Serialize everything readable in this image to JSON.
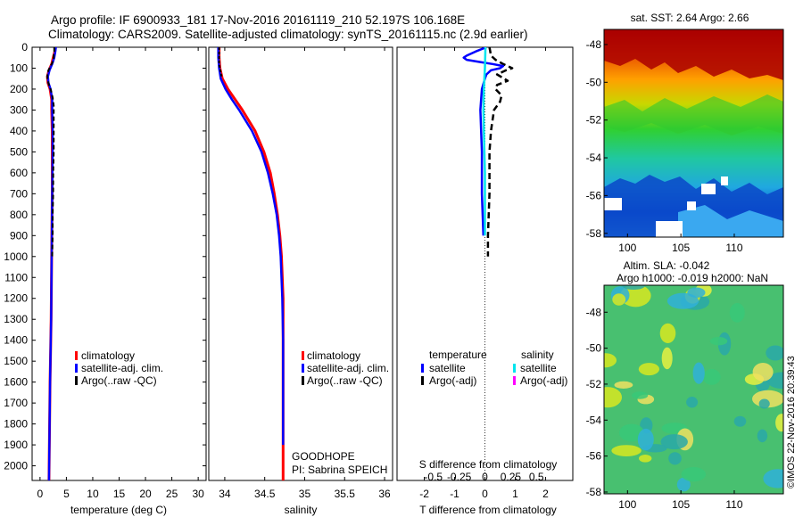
{
  "header": {
    "line1": "Argo profile: IF 6900933_181 17-Nov-2016 20161119_210 52.197S 106.168E",
    "line2": "Climatology: CARS2009. Satellite-adjusted climatology: synTS_20161115.nc (2.9d earlier)"
  },
  "colors": {
    "climatology": "#ff0000",
    "satellite": "#0000ff",
    "argo": "#000000",
    "sat_salinity": "#00e5ee",
    "argo_salinity": "#ff00ff"
  },
  "depth_axis": {
    "min": 0,
    "max": 2070,
    "ticks": [
      0,
      100,
      200,
      300,
      400,
      500,
      600,
      700,
      800,
      900,
      1000,
      1100,
      1200,
      1300,
      1400,
      1500,
      1600,
      1700,
      1800,
      1900,
      2000
    ]
  },
  "chart_data": [
    {
      "type": "line",
      "id": "temperature",
      "xlabel": "temperature (deg C)",
      "xlim": [
        -1.5,
        31.5
      ],
      "xticks": [
        0,
        5,
        10,
        15,
        20,
        25,
        30
      ],
      "legend": [
        "climatology",
        "satellite-adj. clim.",
        "Argo(..raw -QC)"
      ],
      "series": [
        {
          "name": "climatology",
          "depth": [
            0,
            20,
            50,
            80,
            110,
            140,
            170,
            200,
            250,
            300,
            400,
            500,
            700,
            1000,
            1300,
            1600,
            2070
          ],
          "values": [
            2.9,
            2.8,
            2.5,
            2.2,
            1.7,
            1.4,
            1.5,
            1.9,
            2.2,
            2.2,
            2.3,
            2.3,
            2.3,
            2.2,
            2.1,
            1.9,
            1.7
          ]
        },
        {
          "name": "satellite-adj. clim.",
          "depth": [
            0,
            20,
            50,
            80,
            110,
            140,
            170,
            200,
            250,
            300,
            400,
            500,
            700,
            1000,
            1300,
            1600,
            2070
          ],
          "values": [
            3.0,
            2.9,
            2.7,
            2.3,
            1.8,
            1.5,
            1.6,
            2.0,
            2.3,
            2.3,
            2.4,
            2.4,
            2.3,
            2.2,
            2.1,
            1.9,
            1.7
          ]
        },
        {
          "name": "Argo(..raw -QC)",
          "depth": [
            0,
            10,
            20,
            30,
            40,
            50,
            60,
            70,
            80,
            90,
            100,
            110,
            120,
            130,
            140,
            150,
            160,
            170,
            180,
            190,
            200,
            220,
            240,
            260,
            280,
            300,
            350,
            400,
            450,
            500,
            600,
            700,
            800,
            900,
            1000
          ],
          "values": [
            2.7,
            2.7,
            2.7,
            2.6,
            2.6,
            2.6,
            2.5,
            2.4,
            2.2,
            2.0,
            1.8,
            1.6,
            1.5,
            1.4,
            1.4,
            1.4,
            1.5,
            1.6,
            1.7,
            1.8,
            2.0,
            2.2,
            2.4,
            2.5,
            2.6,
            2.6,
            2.6,
            2.6,
            2.6,
            2.6,
            2.5,
            2.5,
            2.4,
            2.4,
            2.3
          ]
        }
      ]
    },
    {
      "type": "line",
      "id": "salinity",
      "xlabel": "salinity",
      "xlim": [
        33.8,
        36.1
      ],
      "xticks": [
        34,
        34.5,
        35,
        35.5,
        36
      ],
      "legend": [
        "climatology",
        "satellite-adj. clim.",
        "Argo(..raw -QC)"
      ],
      "series": [
        {
          "name": "climatology",
          "depth": [
            0,
            50,
            100,
            150,
            200,
            250,
            300,
            400,
            500,
            600,
            700,
            800,
            900,
            1000,
            1100,
            1200,
            1400,
            2070
          ],
          "values": [
            33.93,
            33.93,
            33.94,
            33.97,
            34.04,
            34.13,
            34.22,
            34.38,
            34.49,
            34.57,
            34.62,
            34.66,
            34.69,
            34.71,
            34.72,
            34.73,
            34.73,
            34.73
          ]
        },
        {
          "name": "satellite-adj. clim.",
          "depth": [
            0,
            50,
            100,
            150,
            200,
            250,
            300,
            400,
            500,
            600,
            700,
            800,
            900,
            1000,
            1100,
            1200,
            1400,
            1900
          ],
          "values": [
            33.92,
            33.92,
            33.93,
            33.95,
            34.01,
            34.09,
            34.18,
            34.34,
            34.46,
            34.54,
            34.6,
            34.65,
            34.68,
            34.7,
            34.71,
            34.72,
            34.73,
            34.73
          ]
        },
        {
          "name": "Argo(..raw -QC)",
          "depth": [
            0,
            10,
            20,
            40,
            60,
            80,
            100,
            120,
            140
          ],
          "values": [
            33.93,
            33.93,
            33.93,
            33.93,
            33.93,
            33.93,
            33.94,
            33.95,
            33.96
          ]
        }
      ],
      "note": {
        "line1": "GOODHOPE",
        "line2": "PI: Sabrina SPEICH"
      }
    },
    {
      "type": "line",
      "id": "difference",
      "xlabel": "T difference from climatology",
      "xlim": [
        -2.9,
        2.9
      ],
      "xticks": [
        -2,
        -1,
        0,
        1,
        2
      ],
      "s_axis_label": "S difference from climatology",
      "s_ticks": [
        "-0.5",
        "-0.25",
        "0",
        "0.25",
        "0.5"
      ],
      "s_tick_values": [
        -0.5,
        -0.25,
        0,
        0.25,
        0.5
      ],
      "legend_titles": [
        "temperature",
        "salinity"
      ],
      "legend": [
        "satellite",
        "Argo(-adj)",
        "satellite",
        "Argo(-adj)"
      ],
      "series": [
        {
          "name": "temperature satellite",
          "depth": [
            0,
            20,
            40,
            50,
            60,
            70,
            80,
            90,
            100,
            110,
            130,
            150,
            200,
            300,
            500,
            700,
            900
          ],
          "values": [
            0.05,
            -0.3,
            -0.6,
            -0.7,
            -0.6,
            -0.2,
            0.25,
            0.6,
            0.5,
            0.2,
            0.05,
            0.0,
            -0.1,
            -0.15,
            -0.1,
            -0.1,
            -0.05
          ]
        },
        {
          "name": "temperature Argo(-adj)",
          "depth": [
            0,
            40,
            60,
            80,
            100,
            110,
            130,
            160,
            180,
            200,
            230,
            260,
            300,
            400,
            500,
            700,
            900,
            1000
          ],
          "values": [
            0.15,
            0.2,
            0.35,
            0.6,
            0.9,
            0.7,
            0.4,
            0.75,
            0.4,
            0.35,
            0.55,
            0.5,
            0.3,
            0.2,
            0.15,
            0.15,
            0.1,
            0.1
          ]
        },
        {
          "name": "salinity satellite",
          "depth": [
            0,
            100,
            200,
            300,
            400,
            500,
            600,
            700,
            800,
            900
          ],
          "values": [
            0.005,
            0.0,
            -0.01,
            -0.015,
            -0.01,
            -0.005,
            0.0,
            0.0,
            0.0,
            0.0
          ]
        }
      ]
    }
  ],
  "sst_map": {
    "title": "sat. SST: 2.64 Argo: 2.66",
    "lat_ticks": [
      -48,
      -50,
      -52,
      -54,
      -56,
      -58
    ],
    "lon_ticks": [
      100,
      105,
      110
    ]
  },
  "sla_map": {
    "title1": "Altim. SLA: -0.042",
    "title2": "Argo h1000: -0.019 h2000: NaN",
    "lat_ticks": [
      -48,
      -50,
      -52,
      -54,
      -56,
      -58
    ],
    "lon_ticks": [
      100,
      105,
      110
    ]
  },
  "credit": "©IMOS 22-Nov-2016 20:39:43"
}
